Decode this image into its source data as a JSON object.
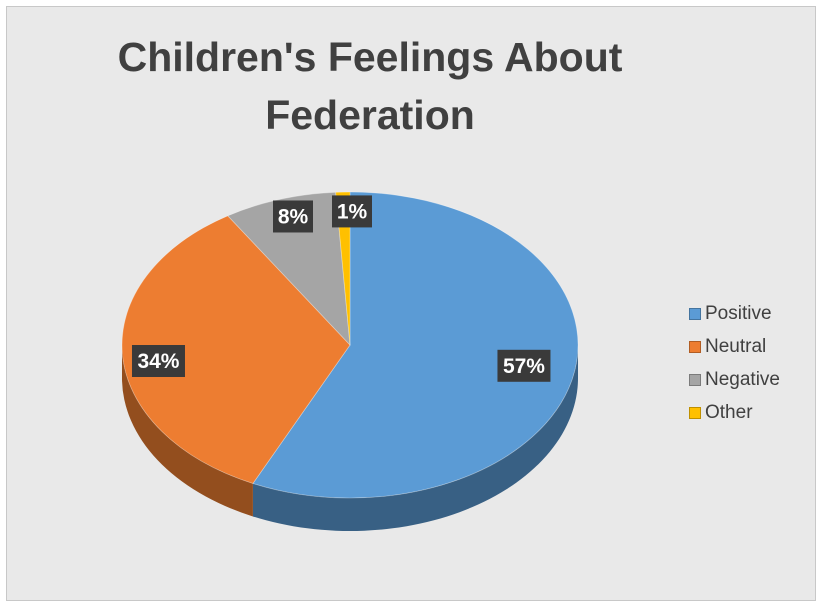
{
  "chart_data": {
    "type": "pie",
    "title": "Children's Feelings About Federation",
    "categories": [
      "Positive",
      "Neutral",
      "Negative",
      "Other"
    ],
    "values": [
      57,
      34,
      8,
      1
    ],
    "labels": [
      "57%",
      "34%",
      "8%",
      "1%"
    ],
    "colors": [
      "#5b9bd5",
      "#ed7d31",
      "#a5a5a5",
      "#ffc000"
    ],
    "legend_position": "right",
    "style": "3d"
  }
}
